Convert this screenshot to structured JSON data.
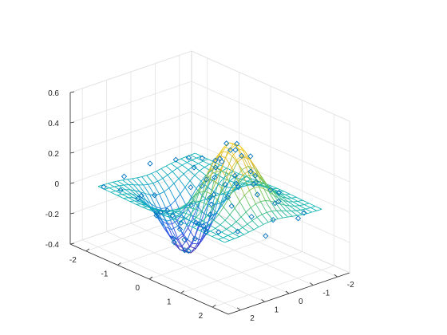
{
  "chart_data": {
    "type": "surface-mesh-with-scatter",
    "title": "",
    "xlabel": "",
    "ylabel": "",
    "zlabel": "",
    "view": "3-D perspective, default azimuth",
    "grid": true,
    "box": true,
    "xlim": [
      -2.5,
      2.5
    ],
    "ylim": [
      -2.5,
      2.5
    ],
    "zlim": [
      -0.4,
      0.6
    ],
    "xticks": [
      "-2",
      "-1",
      "0",
      "1",
      "2"
    ],
    "yticks": [
      "-2",
      "-1",
      "0",
      "1",
      "2"
    ],
    "zticks": [
      "-0.4",
      "-0.2",
      "0",
      "0.2",
      "0.4",
      "0.6"
    ],
    "surface": {
      "description": "mesh of z = x*exp(-x^2 - y^2) sampled on a 21x21 grid from -2 to 2",
      "grid_x_range": [
        -2,
        2
      ],
      "grid_y_range": [
        -2,
        2
      ],
      "grid_steps": 21,
      "colormap_low": "#3e26a8",
      "colormap_mid": "#12b5b6",
      "colormap_high": "#f9d62b",
      "peak": {
        "x": 0.7,
        "y": 0,
        "z": 0.43
      },
      "trough": {
        "x": -0.7,
        "y": 0,
        "z": -0.43
      }
    },
    "scatter": {
      "marker": "diamond-open",
      "color": "#0072bd",
      "points": [
        [
          -1.9,
          -1.6,
          0.0
        ],
        [
          -1.7,
          -1.9,
          0.0
        ],
        [
          -2.0,
          -1.2,
          0.0
        ],
        [
          -1.5,
          -1.3,
          -0.01
        ],
        [
          -1.2,
          -1.8,
          -0.01
        ],
        [
          -1.0,
          -1.5,
          -0.04
        ],
        [
          -0.8,
          -1.2,
          -0.12
        ],
        [
          -1.3,
          -0.9,
          -0.1
        ],
        [
          -0.6,
          -0.8,
          -0.21
        ],
        [
          -0.9,
          -0.6,
          -0.28
        ],
        [
          -0.5,
          -0.5,
          -0.3
        ],
        [
          -0.7,
          -0.3,
          -0.35
        ],
        [
          -0.8,
          0.0,
          -0.42
        ],
        [
          -0.6,
          0.1,
          -0.4
        ],
        [
          -0.9,
          0.3,
          -0.36
        ],
        [
          -0.5,
          0.4,
          -0.3
        ],
        [
          -0.7,
          0.6,
          -0.3
        ],
        [
          -1.0,
          0.9,
          -0.16
        ],
        [
          -1.4,
          1.0,
          -0.06
        ],
        [
          -1.2,
          1.4,
          -0.04
        ],
        [
          -1.6,
          1.6,
          -0.01
        ],
        [
          -1.9,
          1.9,
          0.0
        ],
        [
          -1.3,
          0.5,
          -0.19
        ],
        [
          -1.6,
          0.2,
          -0.12
        ],
        [
          -1.1,
          -0.2,
          -0.32
        ],
        [
          -0.3,
          -0.2,
          -0.25
        ],
        [
          -0.2,
          0.2,
          -0.18
        ],
        [
          -0.3,
          0.8,
          -0.15
        ],
        [
          -0.2,
          -1.0,
          -0.07
        ],
        [
          -0.4,
          -1.6,
          -0.03
        ],
        [
          -0.2,
          1.5,
          -0.02
        ],
        [
          -0.1,
          1.9,
          0.0
        ],
        [
          0.0,
          -1.9,
          0.0
        ],
        [
          0.0,
          0.0,
          0.0
        ],
        [
          0.1,
          -0.5,
          0.07
        ],
        [
          0.2,
          0.6,
          0.13
        ],
        [
          0.3,
          -0.1,
          0.26
        ],
        [
          0.4,
          0.3,
          0.3
        ],
        [
          0.5,
          -0.4,
          0.34
        ],
        [
          0.6,
          0.1,
          0.42
        ],
        [
          0.7,
          -0.2,
          0.41
        ],
        [
          0.8,
          0.2,
          0.4
        ],
        [
          0.7,
          0.5,
          0.35
        ],
        [
          0.9,
          -0.5,
          0.33
        ],
        [
          0.5,
          0.8,
          0.21
        ],
        [
          0.6,
          -0.9,
          0.18
        ],
        [
          1.0,
          0.0,
          0.37
        ],
        [
          1.1,
          0.4,
          0.27
        ],
        [
          1.2,
          -0.3,
          0.24
        ],
        [
          1.3,
          0.8,
          0.11
        ],
        [
          0.9,
          1.1,
          0.1
        ],
        [
          1.0,
          -1.2,
          0.08
        ],
        [
          0.4,
          1.3,
          0.06
        ],
        [
          0.3,
          -1.4,
          0.04
        ],
        [
          1.5,
          0.0,
          0.16
        ],
        [
          1.6,
          -0.6,
          0.08
        ],
        [
          1.4,
          -1.0,
          0.05
        ],
        [
          1.7,
          0.5,
          0.06
        ],
        [
          1.8,
          1.2,
          0.01
        ],
        [
          1.9,
          -1.4,
          0.0
        ],
        [
          1.5,
          1.6,
          0.0
        ],
        [
          2.0,
          0.0,
          0.04
        ],
        [
          2.1,
          -0.9,
          0.01
        ],
        [
          1.1,
          1.7,
          0.01
        ],
        [
          0.8,
          -1.8,
          0.01
        ],
        [
          2.3,
          0.7,
          0.0
        ],
        [
          -2.2,
          -0.4,
          0.0
        ],
        [
          -2.1,
          0.8,
          -0.01
        ],
        [
          -0.1,
          -1.3,
          -0.01
        ],
        [
          0.2,
          1.8,
          0.0
        ]
      ]
    }
  }
}
